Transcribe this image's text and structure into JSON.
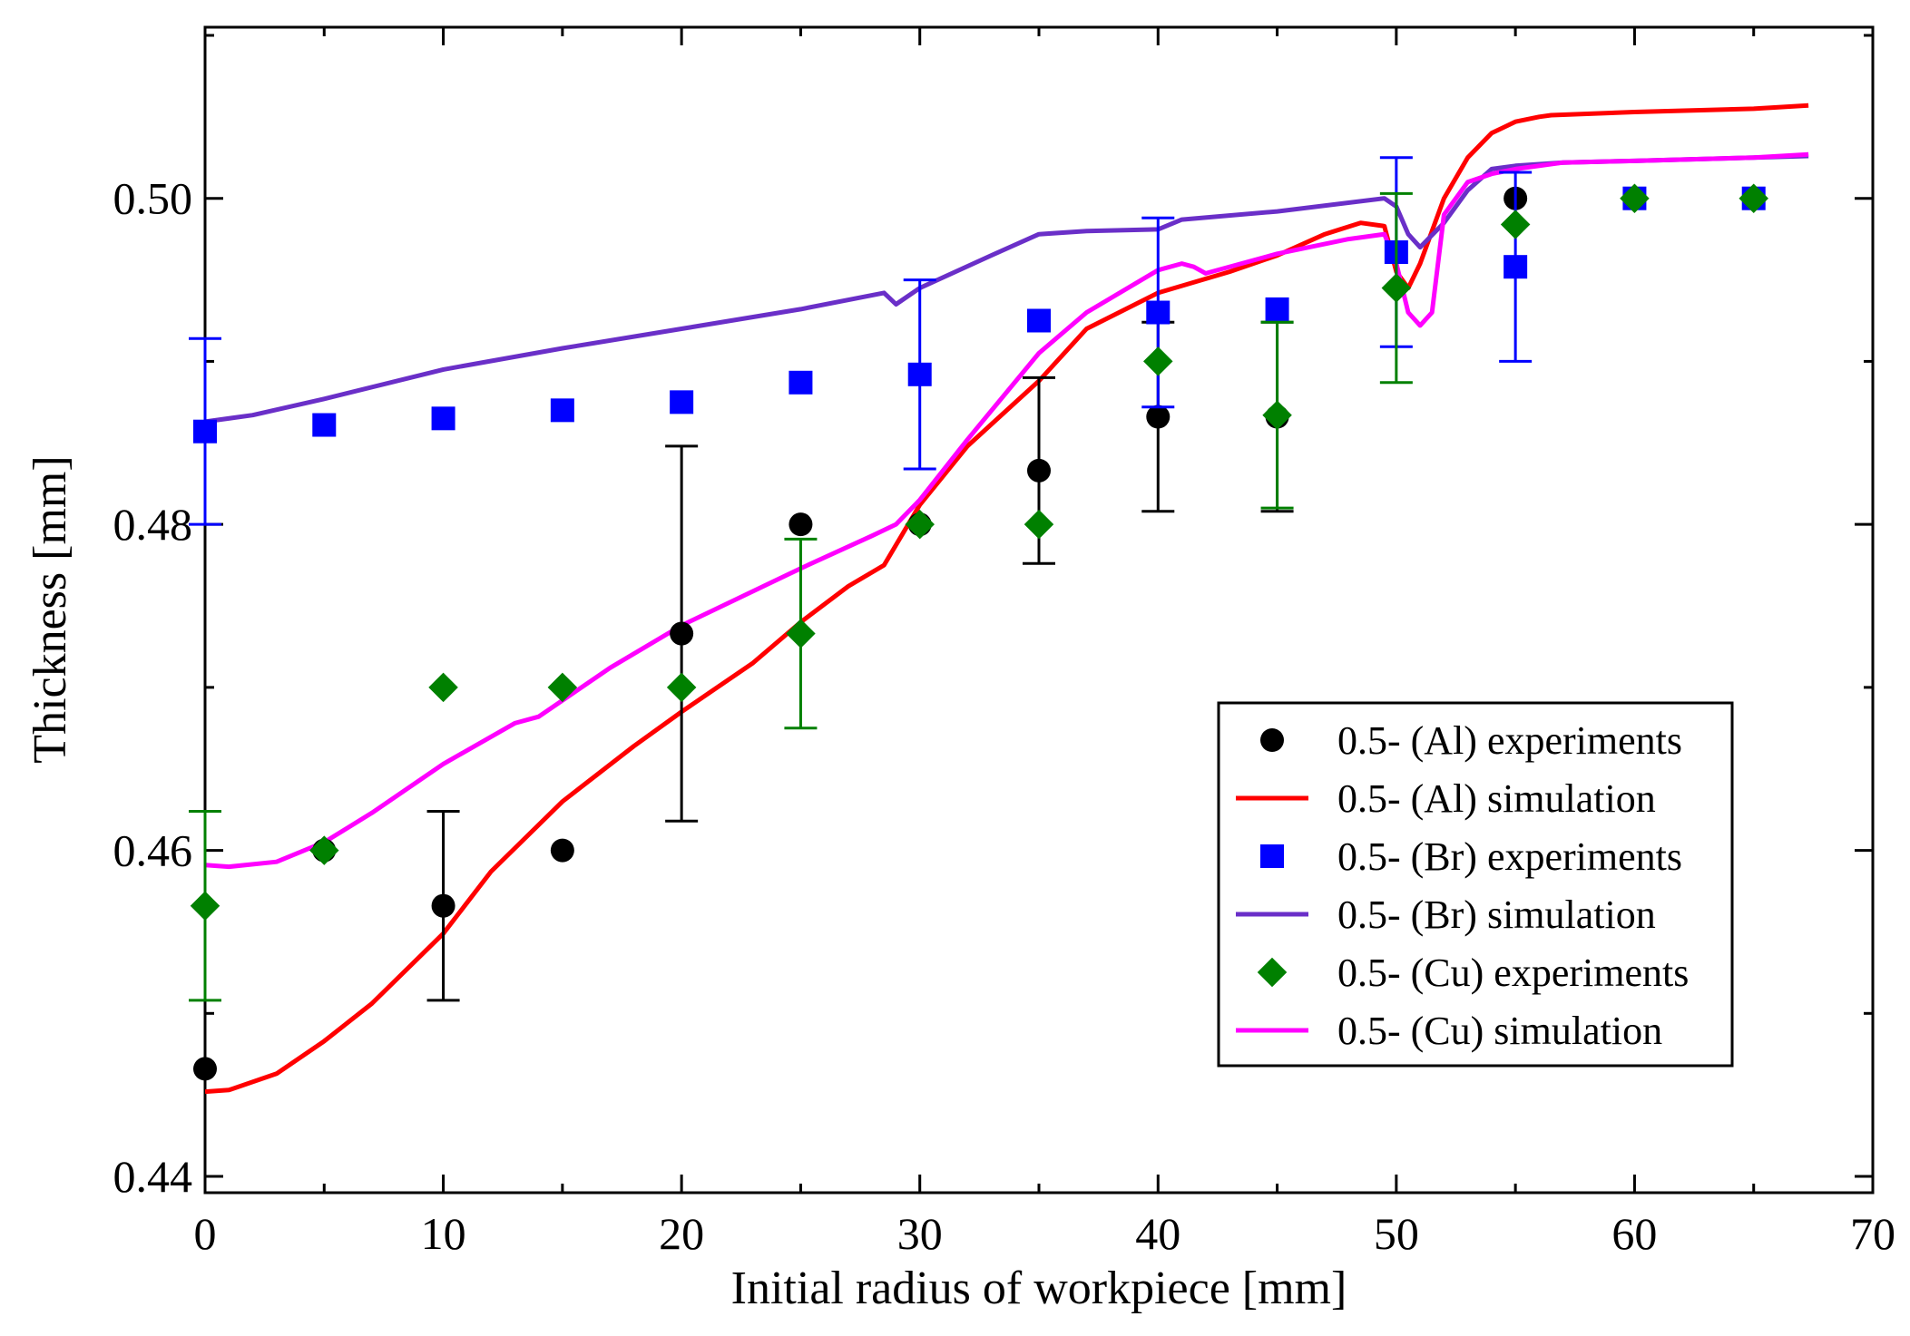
{
  "chart_data": {
    "type": "scatter",
    "title": "",
    "xlabel": "Initial radius of workpiece [mm]",
    "ylabel": "Thickness [mm]",
    "xlim": [
      0,
      70
    ],
    "ylim": [
      0.439,
      0.5105
    ],
    "xticks": [
      0,
      10,
      20,
      30,
      40,
      50,
      60,
      70
    ],
    "yticks": [
      0.44,
      0.46,
      0.48,
      0.5
    ],
    "xtick_labels": [
      "0",
      "10",
      "20",
      "30",
      "40",
      "50",
      "60",
      "70"
    ],
    "ytick_labels": [
      "0.44",
      "0.46",
      "0.48",
      "0.50"
    ],
    "grid": false,
    "legend_position": "lower-right",
    "series": [
      {
        "name": "0.5- (Al) experiments",
        "kind": "scatter",
        "marker": "circle",
        "color": "#000000",
        "x": [
          0,
          5,
          10,
          15,
          20,
          25,
          30,
          35,
          40,
          45,
          55,
          60,
          65
        ],
        "y": [
          0.4466,
          0.46,
          0.4566,
          0.46,
          0.4733,
          0.48,
          0.48,
          0.4833,
          0.4866,
          0.4866,
          0.5,
          0.5,
          0.5
        ],
        "err": [
          null,
          null,
          0.0058,
          null,
          0.0115,
          null,
          null,
          0.0057,
          0.0058,
          0.0058,
          null,
          null,
          null
        ]
      },
      {
        "name": "0.5- (Al) simulation",
        "kind": "line",
        "color": "#ff0000",
        "x": [
          0,
          1,
          3,
          5,
          7,
          10,
          12,
          15,
          18,
          20,
          23,
          25,
          27,
          28.5,
          30,
          32,
          35,
          37,
          40,
          43,
          45,
          47,
          48.5,
          49.5,
          50,
          50.5,
          51,
          52,
          53,
          54,
          55,
          56,
          56.5,
          60,
          65,
          67.3
        ],
        "y": [
          0.4452,
          0.4453,
          0.4463,
          0.4483,
          0.4506,
          0.4549,
          0.4587,
          0.463,
          0.4664,
          0.4685,
          0.4715,
          0.474,
          0.4762,
          0.4775,
          0.4812,
          0.4848,
          0.4888,
          0.492,
          0.4942,
          0.4955,
          0.4965,
          0.4978,
          0.4985,
          0.4983,
          0.4955,
          0.4945,
          0.496,
          0.5,
          0.5025,
          0.504,
          0.5047,
          0.505,
          0.5051,
          0.5053,
          0.5055,
          0.5057
        ]
      },
      {
        "name": "0.5- (Br) experiments",
        "kind": "scatter",
        "marker": "square",
        "color": "#0000ff",
        "x": [
          0,
          5,
          10,
          15,
          20,
          25,
          30,
          35,
          40,
          45,
          50,
          55,
          60,
          65
        ],
        "y": [
          0.4857,
          0.4861,
          0.4865,
          0.487,
          0.4875,
          0.4887,
          0.4892,
          0.4925,
          0.493,
          0.4932,
          0.4967,
          0.4958,
          0.5,
          0.5
        ],
        "err": [
          0.0057,
          null,
          null,
          null,
          null,
          null,
          0.0058,
          null,
          0.0058,
          null,
          0.0058,
          0.0058,
          null,
          null
        ]
      },
      {
        "name": "0.5- (Br) simulation",
        "kind": "line",
        "color": "#6a2fc8",
        "x": [
          0,
          2,
          5,
          10,
          15,
          20,
          25,
          28.5,
          29,
          30,
          33,
          35,
          37,
          40,
          41,
          45,
          49.5,
          50,
          50.5,
          51,
          52,
          53,
          54,
          55,
          57,
          60,
          65,
          67.3
        ],
        "y": [
          0.4863,
          0.4867,
          0.4877,
          0.4895,
          0.4908,
          0.492,
          0.4932,
          0.4942,
          0.4935,
          0.4945,
          0.4965,
          0.4978,
          0.498,
          0.4981,
          0.4987,
          0.4992,
          0.5,
          0.4995,
          0.4978,
          0.497,
          0.4985,
          0.5005,
          0.5018,
          0.502,
          0.5022,
          0.5023,
          0.5025,
          0.5026
        ]
      },
      {
        "name": "0.5- (Cu) experiments",
        "kind": "scatter",
        "marker": "diamond",
        "color": "#008000",
        "x": [
          0,
          5,
          10,
          15,
          20,
          25,
          30,
          35,
          40,
          45,
          50,
          55,
          60,
          65
        ],
        "y": [
          0.4566,
          0.46,
          0.47,
          0.47,
          0.47,
          0.4733,
          0.48,
          0.48,
          0.49,
          0.4867,
          0.4945,
          0.4984,
          0.5,
          0.5
        ],
        "err": [
          0.0058,
          null,
          null,
          null,
          null,
          0.0058,
          null,
          null,
          null,
          0.0057,
          0.0058,
          null,
          null,
          null
        ]
      },
      {
        "name": "0.5- (Cu) simulation",
        "kind": "line",
        "color": "#ff00ff",
        "x": [
          0,
          1,
          3,
          5,
          7,
          10,
          13,
          14,
          17,
          20,
          25,
          28,
          29,
          30,
          32,
          35,
          37,
          40,
          41,
          41.5,
          42,
          45,
          48,
          49.5,
          50,
          50.5,
          51,
          51.5,
          52,
          53,
          54,
          55,
          57,
          60,
          65,
          67.3
        ],
        "y": [
          0.4591,
          0.459,
          0.4593,
          0.4605,
          0.4623,
          0.4653,
          0.4678,
          0.4682,
          0.4712,
          0.4738,
          0.4773,
          0.4793,
          0.48,
          0.4815,
          0.4852,
          0.4905,
          0.493,
          0.4956,
          0.496,
          0.4958,
          0.4954,
          0.4966,
          0.4975,
          0.4978,
          0.496,
          0.493,
          0.4922,
          0.493,
          0.499,
          0.501,
          0.5015,
          0.5018,
          0.5022,
          0.5023,
          0.5025,
          0.5027
        ]
      }
    ]
  }
}
